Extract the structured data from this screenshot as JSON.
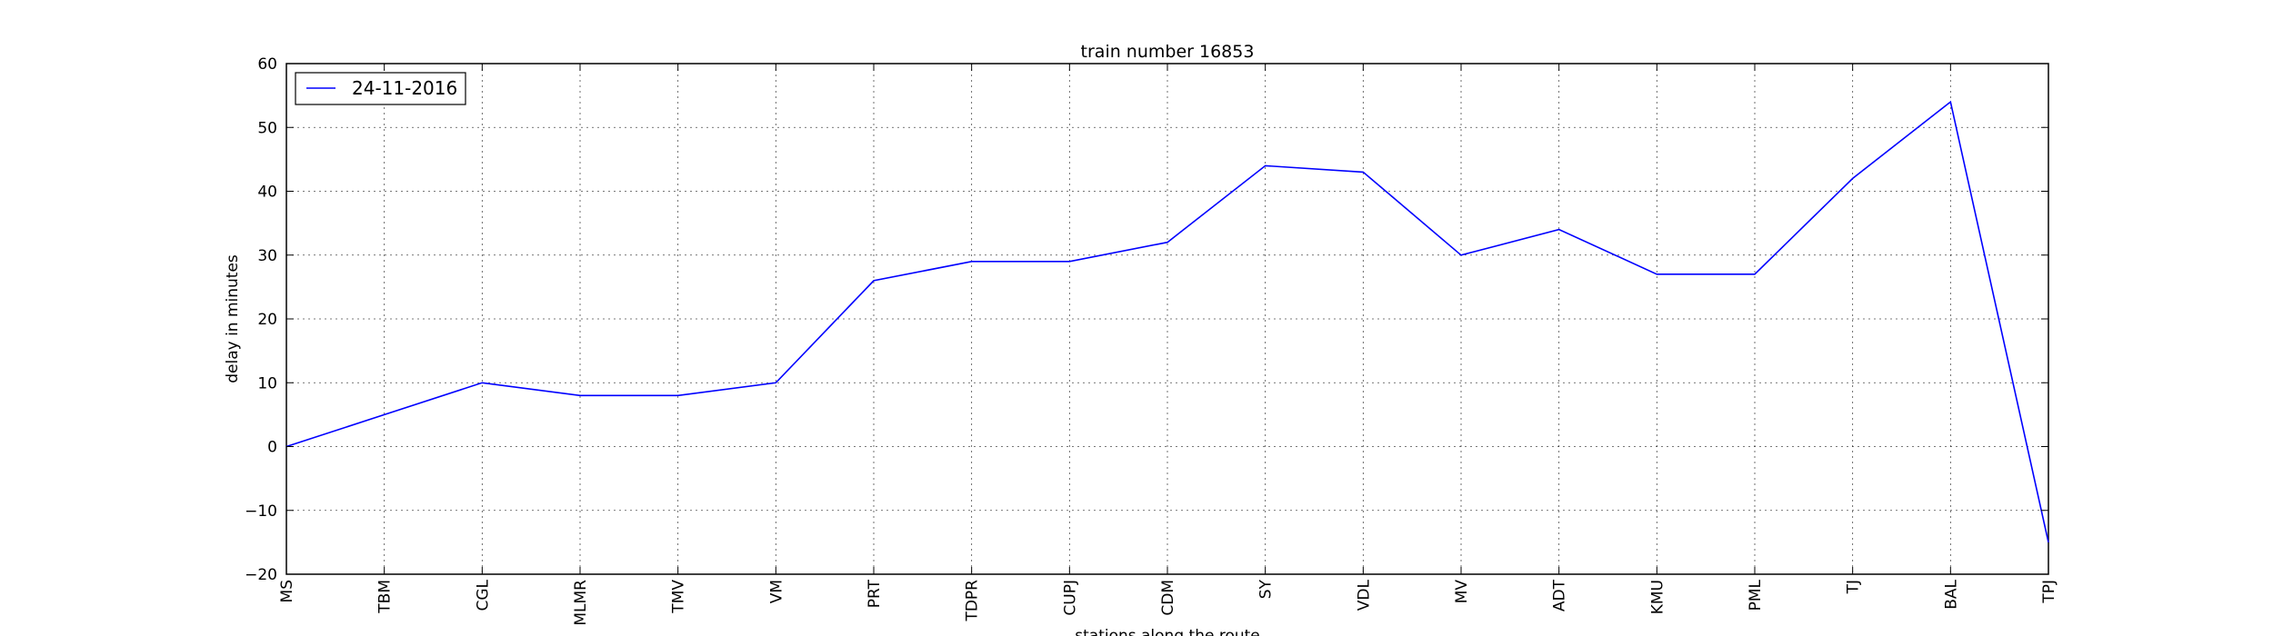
{
  "chart_data": {
    "type": "line",
    "title": "train number 16853",
    "xlabel": "stations along the route",
    "ylabel": "delay in minutes",
    "categories": [
      "MS",
      "TBM",
      "CGL",
      "MLMR",
      "TMV",
      "VM",
      "PRT",
      "TDPR",
      "CUPJ",
      "CDM",
      "SY",
      "VDL",
      "MV",
      "ADT",
      "KMU",
      "PML",
      "TJ",
      "BAL",
      "TPJ"
    ],
    "series": [
      {
        "name": "24-11-2016",
        "color": "#0000ff",
        "values": [
          0,
          5,
          10,
          8,
          8,
          10,
          26,
          29,
          29,
          32,
          44,
          43,
          30,
          34,
          27,
          27,
          42,
          54,
          -15
        ]
      }
    ],
    "ylim": [
      -20,
      60
    ],
    "yticks": [
      -20,
      -10,
      0,
      10,
      20,
      30,
      40,
      50,
      60
    ],
    "ytick_labels": [
      "−20",
      "−10",
      "0",
      "10",
      "20",
      "30",
      "40",
      "50",
      "60"
    ],
    "grid": true,
    "legend": "top-left"
  }
}
